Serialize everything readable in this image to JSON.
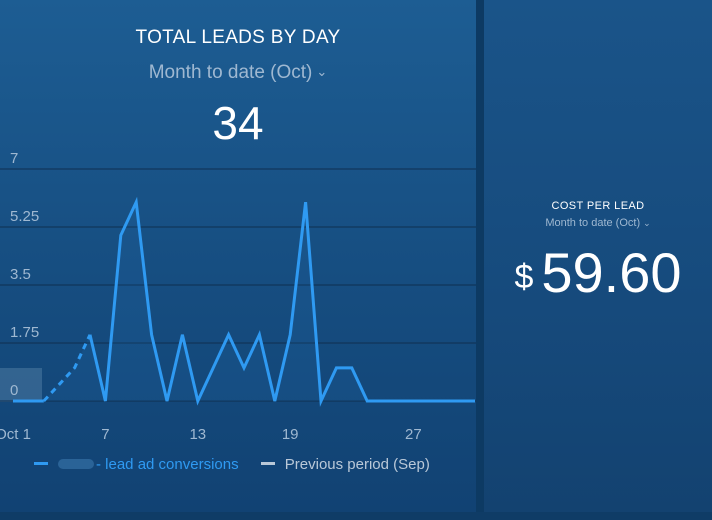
{
  "leads_widget": {
    "title": "TOTAL LEADS BY DAY",
    "period_selector": "Month to date (Oct)",
    "total": "34",
    "legend": {
      "current_label": "- lead ad conversions",
      "previous_label": "Previous period (Sep)"
    }
  },
  "cost_widget": {
    "title": "COST PER LEAD",
    "period_selector": "Month to date (Oct)",
    "currency_symbol": "$",
    "value": "59.60"
  },
  "colors": {
    "line": "#2f9af2",
    "previous_line": "#b9c8d8",
    "grid": "#0f2f50"
  },
  "chart_data": {
    "type": "line",
    "title": "TOTAL LEADS BY DAY",
    "x": [
      1,
      2,
      3,
      4,
      5,
      6,
      7,
      8,
      9,
      10,
      11,
      12,
      13,
      14,
      15,
      16,
      17,
      18,
      19,
      20,
      21,
      22,
      23,
      24,
      25,
      26,
      27,
      28,
      29,
      30,
      31
    ],
    "x_tick_labels": [
      "Oct 1",
      "7",
      "13",
      "19",
      "27"
    ],
    "x_tick_positions": [
      1,
      7,
      13,
      19,
      27
    ],
    "ylim": [
      0,
      7
    ],
    "y_ticks": [
      "0",
      "1.75",
      "3.5",
      "5.25",
      "7"
    ],
    "y_tick_values": [
      0,
      1.75,
      3.5,
      5.25,
      7
    ],
    "series": [
      {
        "name": "- lead ad conversions",
        "values": [
          0,
          0,
          0,
          0.5,
          1,
          2,
          0,
          5,
          6,
          2,
          0,
          2,
          0,
          1,
          2,
          1,
          2,
          0,
          2,
          6,
          0,
          1,
          1,
          0,
          0,
          0,
          0,
          0,
          0,
          0,
          0
        ],
        "dashed_until_index": 5
      }
    ],
    "grid": true,
    "legend_position": "bottom-left"
  }
}
